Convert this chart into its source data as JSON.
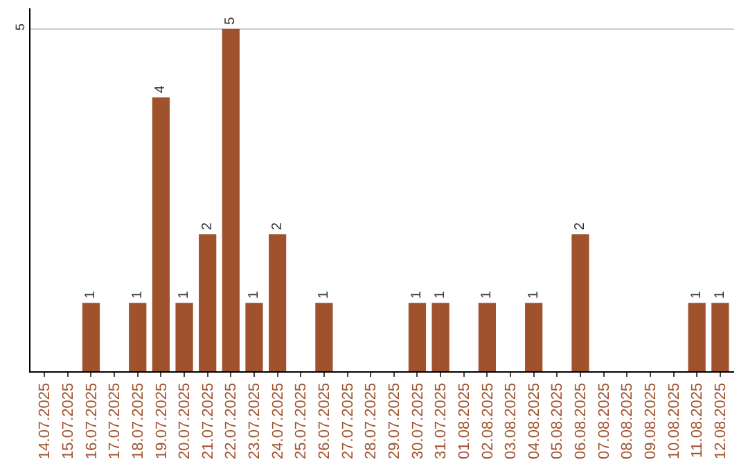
{
  "chart_data": {
    "type": "bar",
    "categories": [
      "14.07.2025",
      "15.07.2025",
      "16.07.2025",
      "17.07.2025",
      "18.07.2025",
      "19.07.2025",
      "20.07.2025",
      "21.07.2025",
      "22.07.2025",
      "23.07.2025",
      "24.07.2025",
      "25.07.2025",
      "26.07.2025",
      "27.07.2025",
      "28.07.2025",
      "29.07.2025",
      "30.07.2025",
      "31.07.2025",
      "01.08.2025",
      "02.08.2025",
      "03.08.2025",
      "04.08.2025",
      "05.08.2025",
      "06.08.2025",
      "07.08.2025",
      "08.08.2025",
      "09.08.2025",
      "10.08.2025",
      "11.08.2025",
      "12.08.2025"
    ],
    "values": [
      0,
      0,
      1,
      0,
      1,
      4,
      1,
      2,
      5,
      1,
      2,
      0,
      1,
      0,
      0,
      0,
      1,
      1,
      0,
      1,
      0,
      1,
      0,
      2,
      0,
      0,
      0,
      0,
      1,
      1
    ],
    "value_labels": [
      null,
      null,
      "1",
      null,
      "1",
      "4",
      "1",
      "2",
      "5",
      "1",
      "2",
      null,
      "1",
      null,
      null,
      null,
      "1",
      "1",
      null,
      "1",
      null,
      "1",
      null,
      "2",
      null,
      null,
      null,
      null,
      "1",
      "1"
    ],
    "color": "#a0522d",
    "ylim": [
      0,
      5.3
    ],
    "yticks": [
      5
    ],
    "grid": "y"
  }
}
